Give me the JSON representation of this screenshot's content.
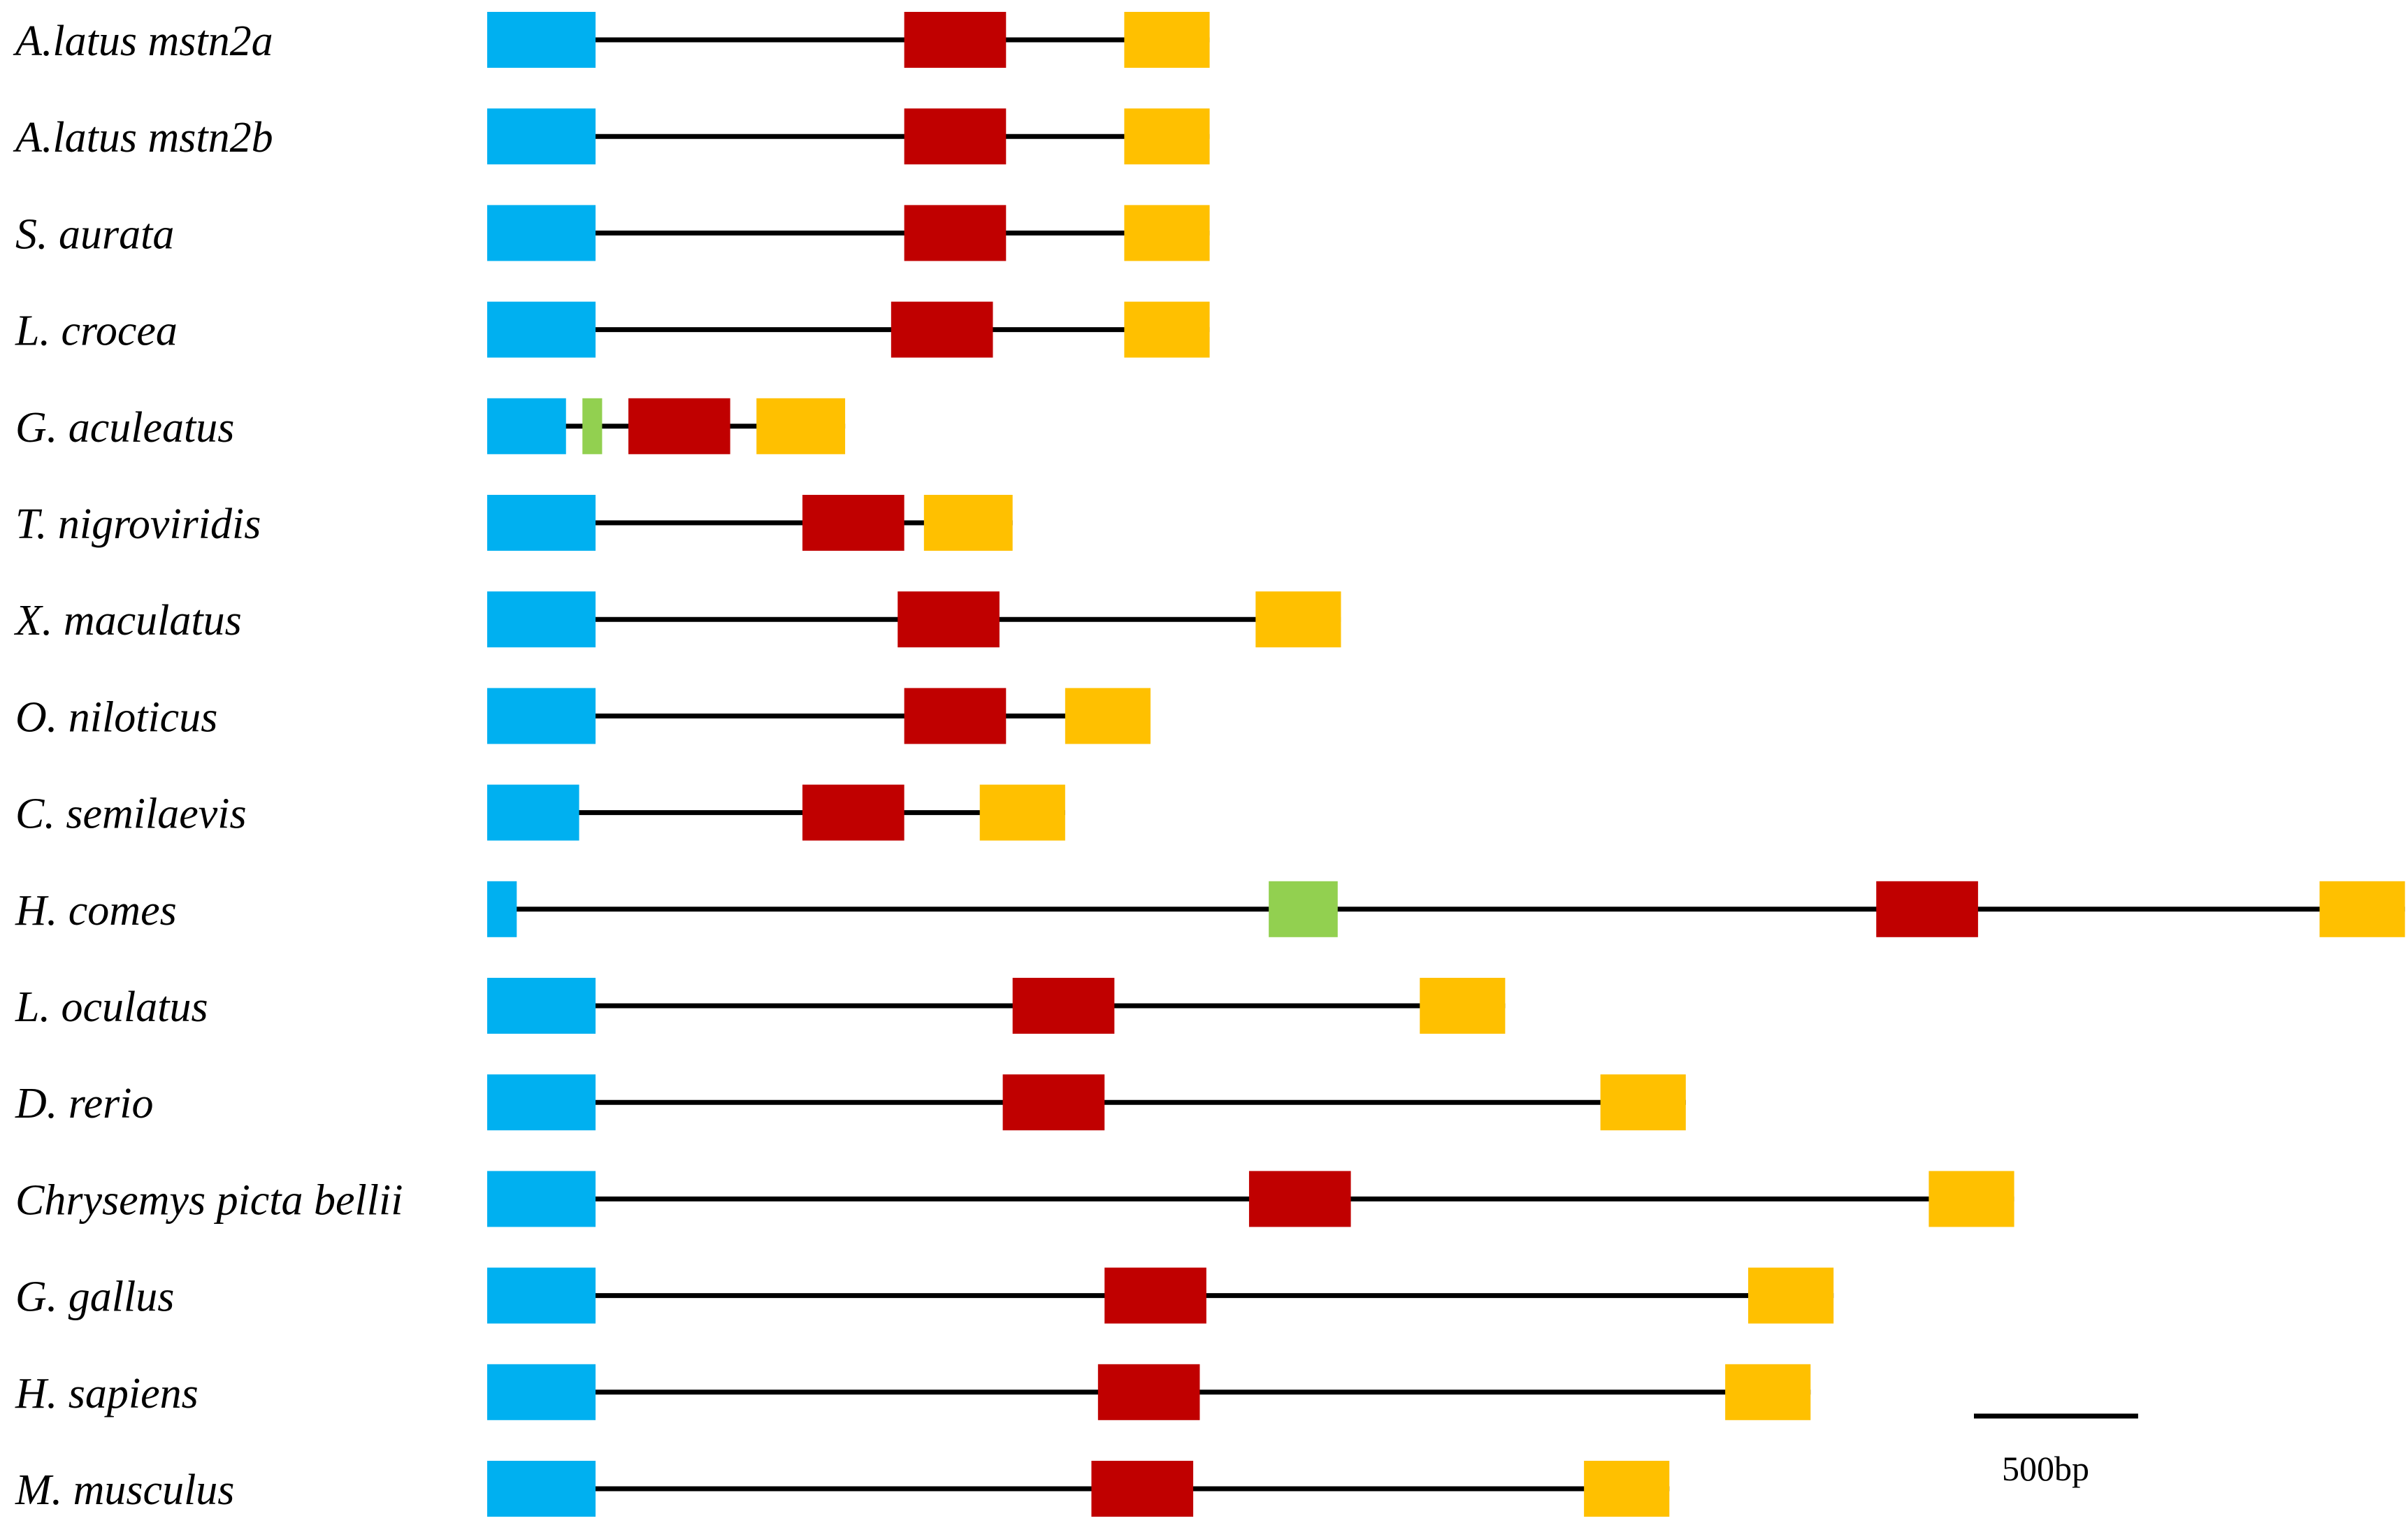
{
  "colors": {
    "exon1": "#00b0f0",
    "exon_extra": "#92d050",
    "exon2": "#c00000",
    "exon3": "#ffc000",
    "intron": "#000000"
  },
  "units": "bp",
  "scale_bar": {
    "label": "500bp",
    "length_bp": 500
  },
  "genes": [
    {
      "species": "A.latus mstn2a",
      "exons": [
        {
          "kind": "exon1",
          "start": 0,
          "end": 330
        },
        {
          "kind": "exon2",
          "start": 1270,
          "end": 1580
        },
        {
          "kind": "exon3",
          "start": 1940,
          "end": 2200
        }
      ]
    },
    {
      "species": "A.latus mstn2b",
      "exons": [
        {
          "kind": "exon1",
          "start": 0,
          "end": 330
        },
        {
          "kind": "exon2",
          "start": 1270,
          "end": 1580
        },
        {
          "kind": "exon3",
          "start": 1940,
          "end": 2200
        }
      ]
    },
    {
      "species": "S. aurata",
      "exons": [
        {
          "kind": "exon1",
          "start": 0,
          "end": 330
        },
        {
          "kind": "exon2",
          "start": 1270,
          "end": 1580
        },
        {
          "kind": "exon3",
          "start": 1940,
          "end": 2200
        }
      ]
    },
    {
      "species": "L. crocea",
      "exons": [
        {
          "kind": "exon1",
          "start": 0,
          "end": 330
        },
        {
          "kind": "exon2",
          "start": 1230,
          "end": 1540
        },
        {
          "kind": "exon3",
          "start": 1940,
          "end": 2200
        }
      ]
    },
    {
      "species": "G. aculeatus",
      "exons": [
        {
          "kind": "exon1",
          "start": 0,
          "end": 240
        },
        {
          "kind": "exon_extra",
          "start": 290,
          "end": 350
        },
        {
          "kind": "exon2",
          "start": 430,
          "end": 740
        },
        {
          "kind": "exon3",
          "start": 820,
          "end": 1090
        }
      ]
    },
    {
      "species": "T. nigroviridis",
      "exons": [
        {
          "kind": "exon1",
          "start": 0,
          "end": 330
        },
        {
          "kind": "exon2",
          "start": 960,
          "end": 1270
        },
        {
          "kind": "exon3",
          "start": 1330,
          "end": 1600
        }
      ]
    },
    {
      "species": "X. maculatus",
      "exons": [
        {
          "kind": "exon1",
          "start": 0,
          "end": 330
        },
        {
          "kind": "exon2",
          "start": 1250,
          "end": 1560
        },
        {
          "kind": "exon3",
          "start": 2340,
          "end": 2600
        }
      ]
    },
    {
      "species": "O. niloticus",
      "exons": [
        {
          "kind": "exon1",
          "start": 0,
          "end": 330
        },
        {
          "kind": "exon2",
          "start": 1270,
          "end": 1580
        },
        {
          "kind": "exon3",
          "start": 1760,
          "end": 2020
        }
      ]
    },
    {
      "species": "C. semilaevis",
      "exons": [
        {
          "kind": "exon1",
          "start": 0,
          "end": 280
        },
        {
          "kind": "exon2",
          "start": 960,
          "end": 1270
        },
        {
          "kind": "exon3",
          "start": 1500,
          "end": 1760
        }
      ]
    },
    {
      "species": "H. comes",
      "exons": [
        {
          "kind": "exon1",
          "start": 0,
          "end": 90
        },
        {
          "kind": "exon_extra",
          "start": 2380,
          "end": 2590
        },
        {
          "kind": "exon2",
          "start": 4230,
          "end": 4540
        },
        {
          "kind": "exon3",
          "start": 5580,
          "end": 5840
        }
      ]
    },
    {
      "species": "L. oculatus",
      "exons": [
        {
          "kind": "exon1",
          "start": 0,
          "end": 330
        },
        {
          "kind": "exon2",
          "start": 1600,
          "end": 1910
        },
        {
          "kind": "exon3",
          "start": 2840,
          "end": 3100
        }
      ]
    },
    {
      "species": "D. rerio",
      "exons": [
        {
          "kind": "exon1",
          "start": 0,
          "end": 330
        },
        {
          "kind": "exon2",
          "start": 1570,
          "end": 1880
        },
        {
          "kind": "exon3",
          "start": 3390,
          "end": 3650
        }
      ]
    },
    {
      "species": "Chrysemys picta bellii",
      "exons": [
        {
          "kind": "exon1",
          "start": 0,
          "end": 330
        },
        {
          "kind": "exon2",
          "start": 2320,
          "end": 2630
        },
        {
          "kind": "exon3",
          "start": 4390,
          "end": 4650
        }
      ]
    },
    {
      "species": "G. gallus",
      "exons": [
        {
          "kind": "exon1",
          "start": 0,
          "end": 330
        },
        {
          "kind": "exon2",
          "start": 1880,
          "end": 2190
        },
        {
          "kind": "exon3",
          "start": 3840,
          "end": 4100
        }
      ]
    },
    {
      "species": "H. sapiens",
      "exons": [
        {
          "kind": "exon1",
          "start": 0,
          "end": 330
        },
        {
          "kind": "exon2",
          "start": 1860,
          "end": 2170
        },
        {
          "kind": "exon3",
          "start": 3770,
          "end": 4030
        }
      ]
    },
    {
      "species": "M. musculus",
      "exons": [
        {
          "kind": "exon1",
          "start": 0,
          "end": 330
        },
        {
          "kind": "exon2",
          "start": 1840,
          "end": 2150
        },
        {
          "kind": "exon3",
          "start": 3340,
          "end": 3600
        }
      ]
    }
  ]
}
